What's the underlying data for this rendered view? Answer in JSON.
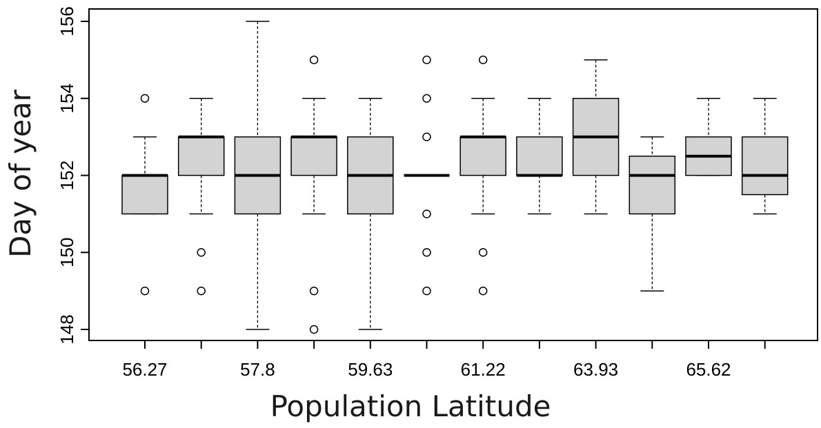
{
  "chart_data": {
    "type": "boxplot",
    "title": "",
    "xlabel": "Population Latitude",
    "ylabel": "Day of year",
    "ylim": [
      147.7,
      156.3
    ],
    "y_ticks": [
      148,
      150,
      152,
      154,
      156
    ],
    "x_tick_labels": [
      "56.27",
      "",
      "57.8",
      "",
      "59.63",
      "",
      "61.22",
      "",
      "63.93",
      "",
      "65.62",
      ""
    ],
    "grid": false,
    "legend": "none",
    "colors": {
      "box_fill": "#d3d3d3",
      "stroke": "#000000",
      "background": "#ffffff"
    },
    "boxes": [
      {
        "whisker_low": 151,
        "q1": 151,
        "median": 152,
        "q3": 152,
        "whisker_high": 153,
        "outliers": [
          149,
          154
        ]
      },
      {
        "whisker_low": 151,
        "q1": 152,
        "median": 153,
        "q3": 153,
        "whisker_high": 154,
        "outliers": [
          149,
          150
        ]
      },
      {
        "whisker_low": 148,
        "q1": 151,
        "median": 152,
        "q3": 153,
        "whisker_high": 156,
        "outliers": []
      },
      {
        "whisker_low": 151,
        "q1": 152,
        "median": 153,
        "q3": 153,
        "whisker_high": 154,
        "outliers": [
          148,
          149,
          155
        ]
      },
      {
        "whisker_low": 148,
        "q1": 151,
        "median": 152,
        "q3": 153,
        "whisker_high": 154,
        "outliers": []
      },
      {
        "whisker_low": 152,
        "q1": 152,
        "median": 152,
        "q3": 152,
        "whisker_high": 152,
        "outliers": [
          149,
          150,
          151,
          153,
          154,
          155
        ]
      },
      {
        "whisker_low": 151,
        "q1": 152,
        "median": 153,
        "q3": 153,
        "whisker_high": 154,
        "outliers": [
          149,
          150,
          155
        ]
      },
      {
        "whisker_low": 151,
        "q1": 152,
        "median": 152,
        "q3": 153,
        "whisker_high": 154,
        "outliers": []
      },
      {
        "whisker_low": 151,
        "q1": 152,
        "median": 153,
        "q3": 154,
        "whisker_high": 155,
        "outliers": []
      },
      {
        "whisker_low": 149,
        "q1": 151,
        "median": 152,
        "q3": 152.5,
        "whisker_high": 153,
        "outliers": []
      },
      {
        "whisker_low": 152,
        "q1": 152,
        "median": 152.5,
        "q3": 153,
        "whisker_high": 154,
        "outliers": []
      },
      {
        "whisker_low": 151,
        "q1": 151.5,
        "median": 152,
        "q3": 153,
        "whisker_high": 154,
        "outliers": []
      }
    ]
  }
}
